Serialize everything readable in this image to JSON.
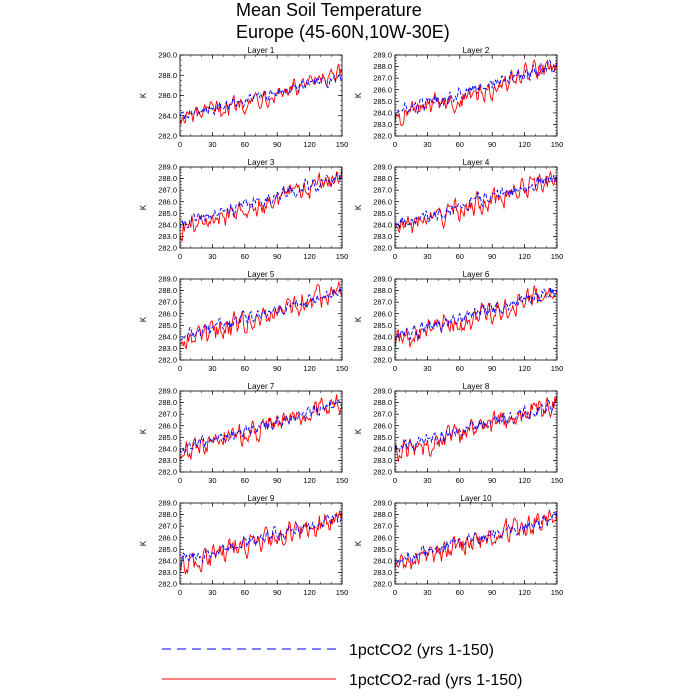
{
  "figure": {
    "title_lines": [
      "Mean Soil Temperature",
      "Europe (45-60N,10W-30E)"
    ]
  },
  "legend": {
    "entries": [
      {
        "label": "1pctCO2 (yrs 1-150)",
        "color": "#0000ff",
        "style": "dashed"
      },
      {
        "label": "1pctCO2-rad (yrs 1-150)",
        "color": "#ff0000",
        "style": "solid"
      }
    ]
  },
  "chart_data": [
    {
      "type": "line",
      "title": "Layer 1",
      "ylabel": "K",
      "xlim": [
        0,
        150
      ],
      "ylim": [
        282.0,
        290.0
      ],
      "xticks": [
        0,
        30,
        60,
        90,
        120,
        150
      ],
      "yticks": [
        282.0,
        284.0,
        286.0,
        288.0,
        290.0
      ],
      "series": [
        {
          "name": "1pctCO2 (yrs 1-150)",
          "x": [
            0,
            150
          ],
          "trend": [
            283.9,
            287.9
          ],
          "color": "#0000ff"
        },
        {
          "name": "1pctCO2-rad (yrs 1-150)",
          "x": [
            0,
            150
          ],
          "trend": [
            283.6,
            288.0
          ],
          "color": "#ff0000"
        }
      ]
    },
    {
      "type": "line",
      "title": "Layer 2",
      "ylabel": "K",
      "xlim": [
        0,
        150
      ],
      "ylim": [
        282.0,
        289.0
      ],
      "xticks": [
        0,
        30,
        60,
        90,
        120,
        150
      ],
      "yticks": [
        282.0,
        283.0,
        284.0,
        285.0,
        286.0,
        287.0,
        288.0,
        289.0
      ],
      "series": [
        {
          "name": "1pctCO2 (yrs 1-150)",
          "x": [
            0,
            150
          ],
          "trend": [
            284.0,
            288.2
          ],
          "color": "#0000ff"
        },
        {
          "name": "1pctCO2-rad (yrs 1-150)",
          "x": [
            0,
            150
          ],
          "trend": [
            283.6,
            288.1
          ],
          "color": "#ff0000"
        }
      ]
    },
    {
      "type": "line",
      "title": "Layer 3",
      "ylabel": "K",
      "xlim": [
        0,
        150
      ],
      "ylim": [
        282.0,
        289.0
      ],
      "xticks": [
        0,
        30,
        60,
        90,
        120,
        150
      ],
      "yticks": [
        282.0,
        283.0,
        284.0,
        285.0,
        286.0,
        287.0,
        288.0,
        289.0
      ],
      "series": [
        {
          "name": "1pctCO2 (yrs 1-150)",
          "x": [
            0,
            150
          ],
          "trend": [
            284.0,
            288.2
          ],
          "color": "#0000ff"
        },
        {
          "name": "1pctCO2-rad (yrs 1-150)",
          "x": [
            0,
            150
          ],
          "trend": [
            283.6,
            288.1
          ],
          "color": "#ff0000"
        }
      ]
    },
    {
      "type": "line",
      "title": "Layer 4",
      "ylabel": "K",
      "xlim": [
        0,
        150
      ],
      "ylim": [
        282.0,
        289.0
      ],
      "xticks": [
        0,
        30,
        60,
        90,
        120,
        150
      ],
      "yticks": [
        282.0,
        283.0,
        284.0,
        285.0,
        286.0,
        287.0,
        288.0,
        289.0
      ],
      "series": [
        {
          "name": "1pctCO2 (yrs 1-150)",
          "x": [
            0,
            150
          ],
          "trend": [
            284.0,
            288.1
          ],
          "color": "#0000ff"
        },
        {
          "name": "1pctCO2-rad (yrs 1-150)",
          "x": [
            0,
            150
          ],
          "trend": [
            283.6,
            288.0
          ],
          "color": "#ff0000"
        }
      ]
    },
    {
      "type": "line",
      "title": "Layer 5",
      "ylabel": "K",
      "xlim": [
        0,
        150
      ],
      "ylim": [
        282.0,
        289.0
      ],
      "xticks": [
        0,
        30,
        60,
        90,
        120,
        150
      ],
      "yticks": [
        282.0,
        283.0,
        284.0,
        285.0,
        286.0,
        287.0,
        288.0,
        289.0
      ],
      "series": [
        {
          "name": "1pctCO2 (yrs 1-150)",
          "x": [
            0,
            150
          ],
          "trend": [
            284.0,
            288.0
          ],
          "color": "#0000ff"
        },
        {
          "name": "1pctCO2-rad (yrs 1-150)",
          "x": [
            0,
            150
          ],
          "trend": [
            283.6,
            288.0
          ],
          "color": "#ff0000"
        }
      ]
    },
    {
      "type": "line",
      "title": "Layer 6",
      "ylabel": "K",
      "xlim": [
        0,
        150
      ],
      "ylim": [
        282.0,
        289.0
      ],
      "xticks": [
        0,
        30,
        60,
        90,
        120,
        150
      ],
      "yticks": [
        282.0,
        283.0,
        284.0,
        285.0,
        286.0,
        287.0,
        288.0,
        289.0
      ],
      "series": [
        {
          "name": "1pctCO2 (yrs 1-150)",
          "x": [
            0,
            150
          ],
          "trend": [
            284.0,
            288.0
          ],
          "color": "#0000ff"
        },
        {
          "name": "1pctCO2-rad (yrs 1-150)",
          "x": [
            0,
            150
          ],
          "trend": [
            283.6,
            287.9
          ],
          "color": "#ff0000"
        }
      ]
    },
    {
      "type": "line",
      "title": "Layer 7",
      "ylabel": "K",
      "xlim": [
        0,
        150
      ],
      "ylim": [
        282.0,
        289.0
      ],
      "xticks": [
        0,
        30,
        60,
        90,
        120,
        150
      ],
      "yticks": [
        282.0,
        283.0,
        284.0,
        285.0,
        286.0,
        287.0,
        288.0,
        289.0
      ],
      "series": [
        {
          "name": "1pctCO2 (yrs 1-150)",
          "x": [
            0,
            150
          ],
          "trend": [
            284.0,
            287.9
          ],
          "color": "#0000ff"
        },
        {
          "name": "1pctCO2-rad (yrs 1-150)",
          "x": [
            0,
            150
          ],
          "trend": [
            283.6,
            287.9
          ],
          "color": "#ff0000"
        }
      ]
    },
    {
      "type": "line",
      "title": "Layer 8",
      "ylabel": "K",
      "xlim": [
        0,
        150
      ],
      "ylim": [
        282.0,
        289.0
      ],
      "xticks": [
        0,
        30,
        60,
        90,
        120,
        150
      ],
      "yticks": [
        282.0,
        283.0,
        284.0,
        285.0,
        286.0,
        287.0,
        288.0,
        289.0
      ],
      "series": [
        {
          "name": "1pctCO2 (yrs 1-150)",
          "x": [
            0,
            150
          ],
          "trend": [
            284.0,
            287.9
          ],
          "color": "#0000ff"
        },
        {
          "name": "1pctCO2-rad (yrs 1-150)",
          "x": [
            0,
            150
          ],
          "trend": [
            283.6,
            287.8
          ],
          "color": "#ff0000"
        }
      ]
    },
    {
      "type": "line",
      "title": "Layer 9",
      "ylabel": "K",
      "xlim": [
        0,
        150
      ],
      "ylim": [
        282.0,
        289.0
      ],
      "xticks": [
        0,
        30,
        60,
        90,
        120,
        150
      ],
      "yticks": [
        282.0,
        283.0,
        284.0,
        285.0,
        286.0,
        287.0,
        288.0,
        289.0
      ],
      "series": [
        {
          "name": "1pctCO2 (yrs 1-150)",
          "x": [
            0,
            150
          ],
          "trend": [
            284.0,
            287.9
          ],
          "color": "#0000ff"
        },
        {
          "name": "1pctCO2-rad (yrs 1-150)",
          "x": [
            0,
            150
          ],
          "trend": [
            283.6,
            287.8
          ],
          "color": "#ff0000"
        }
      ]
    },
    {
      "type": "line",
      "title": "Layer 10",
      "ylabel": "K",
      "xlim": [
        0,
        150
      ],
      "ylim": [
        282.0,
        289.0
      ],
      "xticks": [
        0,
        30,
        60,
        90,
        120,
        150
      ],
      "yticks": [
        282.0,
        283.0,
        284.0,
        285.0,
        286.0,
        287.0,
        288.0,
        289.0
      ],
      "series": [
        {
          "name": "1pctCO2 (yrs 1-150)",
          "x": [
            0,
            150
          ],
          "trend": [
            284.0,
            287.9
          ],
          "color": "#0000ff"
        },
        {
          "name": "1pctCO2-rad (yrs 1-150)",
          "x": [
            0,
            150
          ],
          "trend": [
            283.6,
            287.8
          ],
          "color": "#ff0000"
        }
      ]
    }
  ]
}
